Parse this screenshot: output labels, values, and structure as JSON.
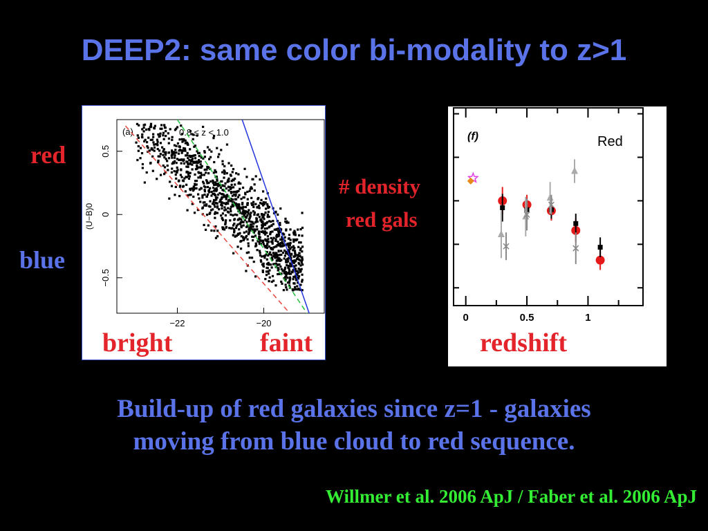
{
  "slide": {
    "title": "DEEP2: same color bi-modality to z>1",
    "label_red": "red",
    "label_blue": "blue",
    "label_bright": "bright",
    "label_faint": "faint",
    "label_density_1": "# density",
    "label_density_2": "red gals",
    "label_redshift": "redshift",
    "body_line1": "Build-up of red galaxies since z=1 - galaxies",
    "body_line2": "moving from blue cloud to red sequence.",
    "credit": "Willmer et al. 2006 ApJ / Faber et al. 2006 ApJ"
  },
  "colors": {
    "title_blue": "#5b73e8",
    "label_red": "#e3242b",
    "credit_green": "#33ee33"
  },
  "chart_data": [
    {
      "type": "scatter",
      "panel_label": "(a)",
      "annotation": "0.8 ≤ z < 1.0",
      "ylabel": "(U−B)0",
      "xlabel": "",
      "xlim": [
        -23.4,
        -18.6
      ],
      "ylim": [
        -0.78,
        0.75
      ],
      "xticks": [
        {
          "v": -22,
          "label": "−22"
        },
        {
          "v": -20,
          "label": "−20"
        }
      ],
      "yticks": [
        {
          "v": 0.5,
          "label": "0.5"
        },
        {
          "v": 0,
          "label": "0"
        },
        {
          "v": -0.5,
          "label": "−0.5"
        }
      ],
      "cloud": {
        "n_points": 1300,
        "color_slope": -0.3,
        "x_range": [
          -23.0,
          -19.1
        ],
        "floor_y": -0.6
      },
      "lines": [
        {
          "name": "red dashed",
          "color": "#e8473d",
          "dash": true,
          "x": [
            -23.2,
            -19.4
          ],
          "y": [
            0.7,
            -0.78
          ]
        },
        {
          "name": "green dashed",
          "color": "#23c23a",
          "dash": true,
          "x": [
            -22.0,
            -19.0
          ],
          "y": [
            0.75,
            -0.78
          ]
        },
        {
          "name": "blue solid",
          "color": "#2233dd",
          "dash": false,
          "x": [
            -20.5,
            -18.95
          ],
          "y": [
            0.75,
            -0.78
          ]
        }
      ]
    },
    {
      "type": "scatter",
      "panel_label": "(f)",
      "legend_label": "Red",
      "xlabel": "",
      "xlim": [
        -0.1,
        1.45
      ],
      "ylim": [
        0,
        10
      ],
      "xticks": [
        {
          "v": 0,
          "label": "0"
        },
        {
          "v": 0.5,
          "label": "0.5"
        },
        {
          "v": 1,
          "label": "1"
        }
      ],
      "series": [
        {
          "marker": "circle",
          "color": "#e61a1a",
          "x": [
            0.3,
            0.5,
            0.7,
            0.9,
            1.1
          ],
          "y": [
            5.3,
            5.1,
            4.8,
            3.8,
            2.3
          ],
          "err": [
            0.7,
            0.5,
            0.5,
            0.6,
            0.5
          ]
        },
        {
          "marker": "square",
          "color": "#000000",
          "x": [
            0.3,
            0.5,
            0.7,
            0.9,
            1.1
          ],
          "y": [
            4.95,
            4.85,
            4.85,
            4.15,
            2.95
          ],
          "err": [
            0.7,
            0.55,
            0.45,
            0.5,
            0.5
          ]
        },
        {
          "marker": "triangle",
          "color": "#aaaaaa",
          "x": [
            0.29,
            0.49,
            0.69,
            0.89
          ],
          "y": [
            3.6,
            4.5,
            5.45,
            6.8
          ],
          "err": [
            1.2,
            1.0,
            0.8,
            0.6
          ]
        },
        {
          "marker": "cross",
          "color": "#888888",
          "x": [
            0.33,
            0.5,
            0.7,
            0.9
          ],
          "y": [
            3.0,
            4.6,
            5.1,
            2.9
          ],
          "err": [
            0.7,
            0.8,
            0.5,
            0.8
          ]
        },
        {
          "marker": "star",
          "color": "#e040e0",
          "x": [
            0.06
          ],
          "y": [
            6.45
          ],
          "err": [
            0
          ]
        },
        {
          "marker": "diamond",
          "color": "#e88a1a",
          "x": [
            0.04
          ],
          "y": [
            6.3
          ],
          "err": [
            0
          ]
        }
      ]
    }
  ]
}
